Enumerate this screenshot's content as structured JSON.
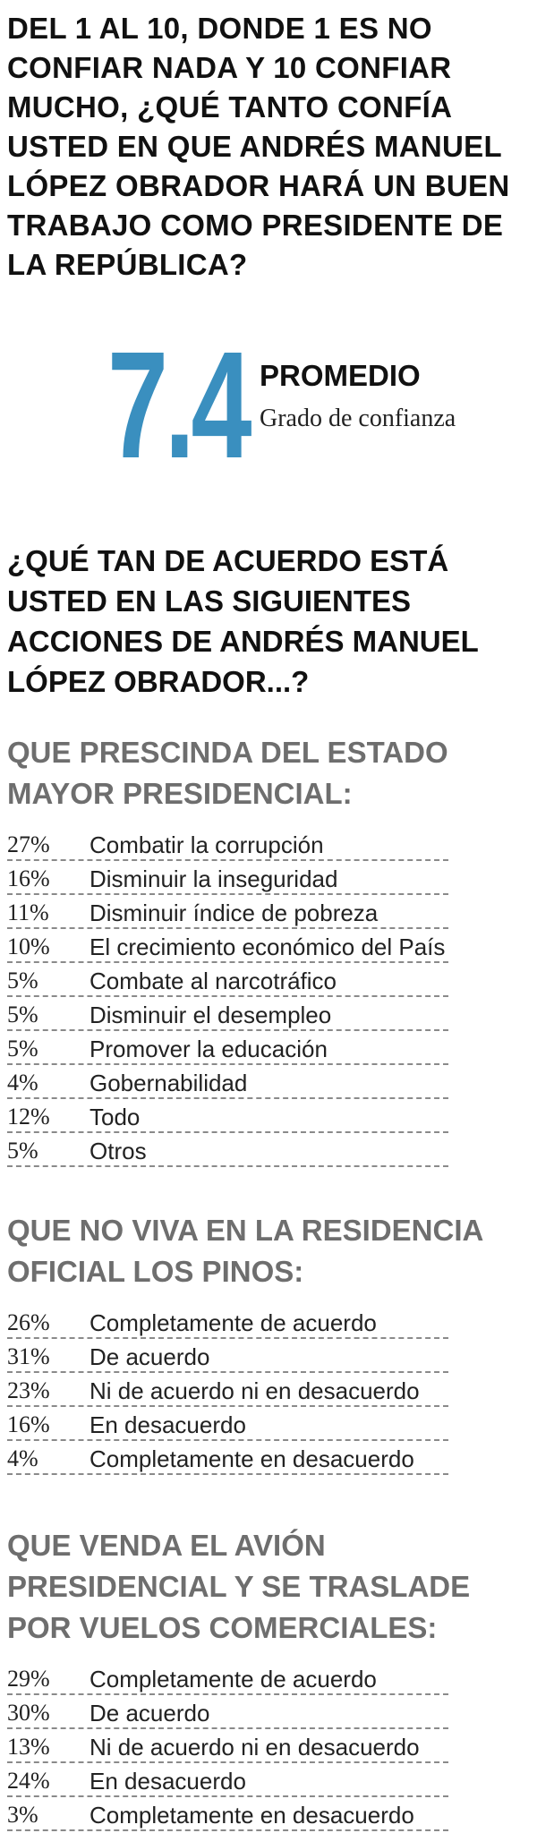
{
  "header": {
    "question": "DEL 1 AL 10, DONDE 1 ES NO CONFIAR NADA Y 10 CONFIAR MUCHO, ¿QUÉ TANTO CONFÍA USTED EN QUE ANDRÉS MANUEL LÓPEZ OBRADOR HARÁ UN BUEN TRABAJO COMO PRESIDENTE DE LA REPÚBLICA?"
  },
  "stat": {
    "value": "7.4",
    "label": "PROMEDIO",
    "description": "Grado de confianza",
    "color": "#3a8fbf"
  },
  "question2": "¿QUÉ TAN DE ACUERDO ESTÁ USTED EN LAS SIGUIENTES ACCIONES DE ANDRÉS MANUEL LÓPEZ OBRADOR...?",
  "sections": [
    {
      "title": "QUE PRESCINDA DEL ESTADO MAYOR PRESIDENCIAL:",
      "rows": [
        {
          "pct": "27%",
          "label": "Combatir la corrupción"
        },
        {
          "pct": "16%",
          "label": "Disminuir la inseguridad"
        },
        {
          "pct": "11%",
          "label": "Disminuir índice de pobreza"
        },
        {
          "pct": "10%",
          "label": "El crecimiento económico del País"
        },
        {
          "pct": "5%",
          "label": "Combate al narcotráfico"
        },
        {
          "pct": "5%",
          "label": "Disminuir el desempleo"
        },
        {
          "pct": "5%",
          "label": "Promover la educación"
        },
        {
          "pct": "4%",
          "label": "Gobernabilidad"
        },
        {
          "pct": "12%",
          "label": "Todo"
        },
        {
          "pct": "5%",
          "label": "Otros"
        }
      ]
    },
    {
      "title": "QUE NO VIVA EN LA RESIDENCIA OFICIAL LOS PINOS:",
      "rows": [
        {
          "pct": "26%",
          "label": "Completamente de acuerdo"
        },
        {
          "pct": "31%",
          "label": "De acuerdo"
        },
        {
          "pct": "23%",
          "label": "Ni de acuerdo ni en desacuerdo"
        },
        {
          "pct": "16%",
          "label": "En desacuerdo"
        },
        {
          "pct": "4%",
          "label": "Completamente en desacuerdo"
        }
      ]
    },
    {
      "title": "QUE VENDA EL AVIÓN PRESIDENCIAL Y SE TRASLADE POR VUELOS COMERCIALES:",
      "rows": [
        {
          "pct": "29%",
          "label": "Completamente de acuerdo"
        },
        {
          "pct": "30%",
          "label": "De acuerdo"
        },
        {
          "pct": "13%",
          "label": "Ni de acuerdo ni en desacuerdo"
        },
        {
          "pct": "24%",
          "label": "En desacuerdo"
        },
        {
          "pct": "3%",
          "label": "Completamente en desacuerdo"
        }
      ]
    }
  ]
}
